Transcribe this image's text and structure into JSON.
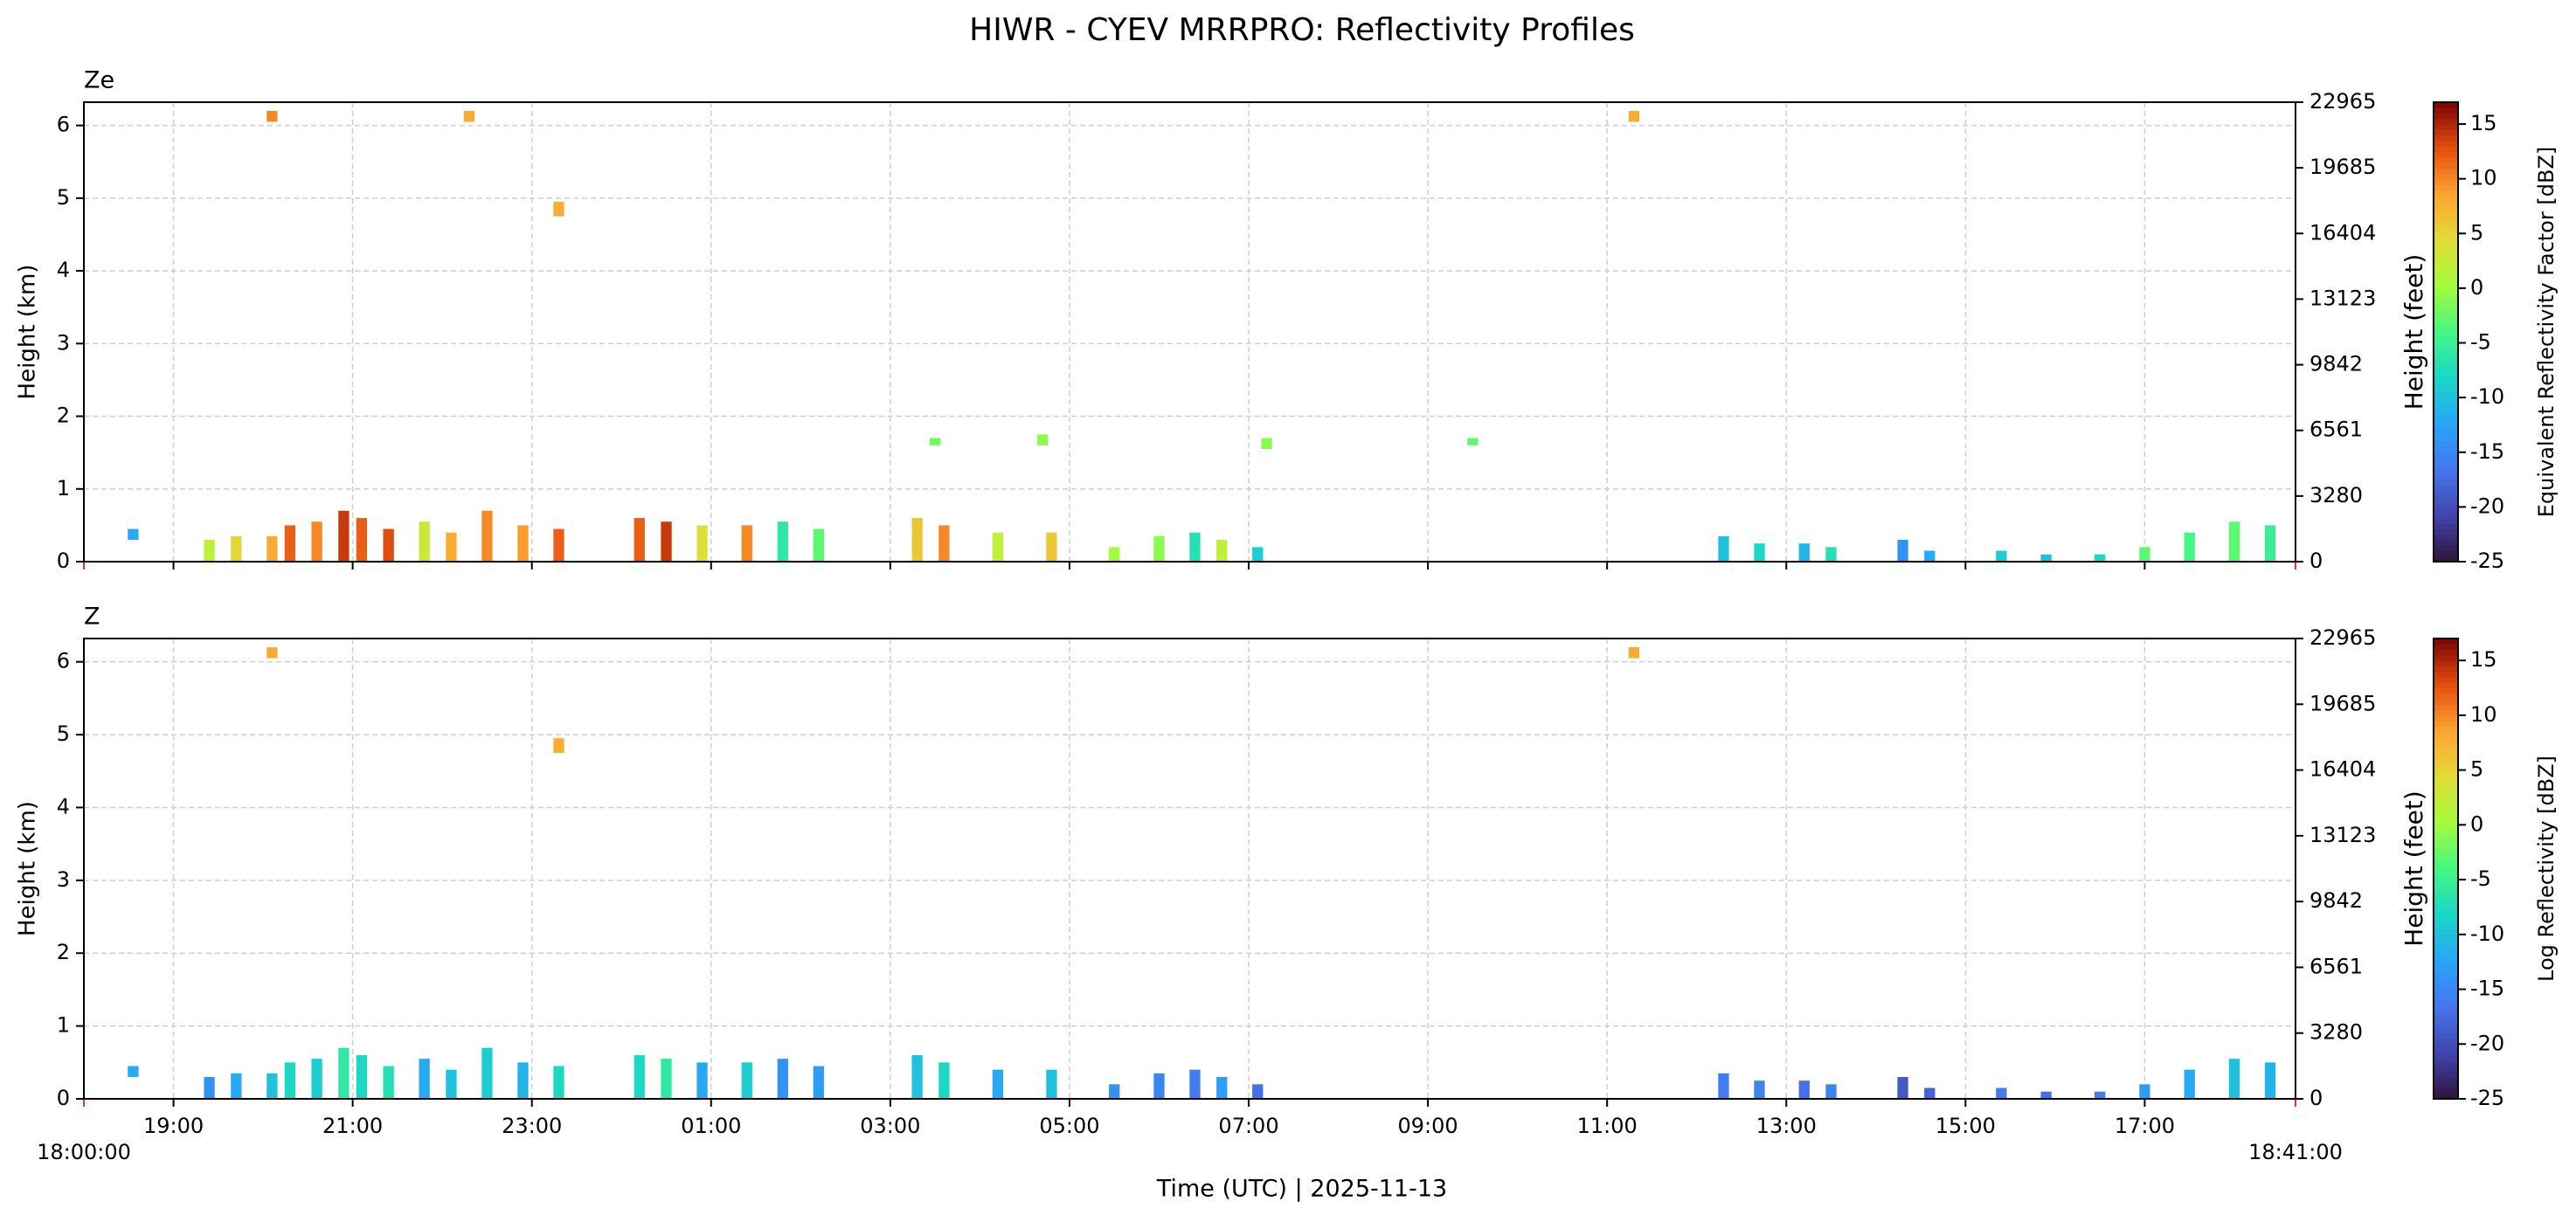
{
  "title": "HIWR - CYEV MRRPRO: Reflectivity Profiles",
  "xlabel": "Time (UTC)  |  2025-11-13",
  "xlim": [
    0,
    24.683
  ],
  "xticks": [
    {
      "value": 0,
      "label": "18:00:00"
    },
    {
      "value": 1,
      "label": "19:00"
    },
    {
      "value": 3,
      "label": "21:00"
    },
    {
      "value": 5,
      "label": "23:00"
    },
    {
      "value": 7,
      "label": "01:00"
    },
    {
      "value": 9,
      "label": "03:00"
    },
    {
      "value": 11,
      "label": "05:00"
    },
    {
      "value": 13,
      "label": "07:00"
    },
    {
      "value": 15,
      "label": "09:00"
    },
    {
      "value": 17,
      "label": "11:00"
    },
    {
      "value": 19,
      "label": "13:00"
    },
    {
      "value": 21,
      "label": "15:00"
    },
    {
      "value": 23,
      "label": "17:00"
    },
    {
      "value": 24.683,
      "label": "18:41:00"
    }
  ],
  "chart_data": [
    {
      "type": "heatmap",
      "panel_label": "Ze",
      "ylabel": "Height (km)",
      "y2label": "Height (feet)",
      "colorbar_label": "Equivalent Reflectivity Factor [dBZ]",
      "ylim": [
        0,
        6.32
      ],
      "yticks": [
        0,
        1,
        2,
        3,
        4,
        5,
        6
      ],
      "y2lim": [
        0,
        22965
      ],
      "y2ticks": [
        0,
        3280,
        6561,
        9842,
        13123,
        16404,
        19685,
        22965
      ],
      "clim": [
        -25,
        17
      ],
      "cticks": [
        -25,
        -20,
        -15,
        -10,
        -5,
        0,
        5,
        10,
        15
      ],
      "colormap": "turbo",
      "grid": true,
      "x": [
        0.55,
        1.4,
        1.7,
        2.1,
        2.3,
        2.6,
        2.9,
        3.1,
        3.4,
        3.8,
        4.1,
        4.5,
        4.9,
        5.3,
        6.2,
        6.5,
        6.9,
        7.4,
        7.8,
        8.2,
        9.3,
        9.6,
        10.2,
        10.8,
        11.5,
        12.0,
        12.4,
        12.7,
        13.1,
        18.3,
        18.7,
        19.2,
        19.5,
        20.3,
        20.6,
        21.4,
        21.9,
        22.5,
        23.0,
        23.5,
        24.0,
        24.4,
        2.1,
        4.3,
        5.3,
        9.5,
        10.7,
        13.2,
        15.5,
        17.3
      ],
      "y0": [
        0.3,
        0,
        0,
        0,
        0,
        0,
        0,
        0,
        0,
        0,
        0,
        0,
        0,
        0,
        0,
        0,
        0,
        0,
        0,
        0,
        0,
        0,
        0,
        0,
        0,
        0,
        0,
        0,
        0,
        0,
        0,
        0,
        0,
        0,
        0,
        0,
        0,
        0,
        0,
        0,
        0,
        0,
        6.05,
        6.05,
        4.75,
        1.6,
        1.6,
        1.55,
        1.6,
        6.05
      ],
      "y1": [
        0.45,
        0.3,
        0.35,
        0.35,
        0.5,
        0.55,
        0.7,
        0.6,
        0.45,
        0.55,
        0.4,
        0.7,
        0.5,
        0.45,
        0.6,
        0.55,
        0.5,
        0.5,
        0.55,
        0.45,
        0.6,
        0.5,
        0.4,
        0.4,
        0.2,
        0.35,
        0.4,
        0.3,
        0.2,
        0.35,
        0.25,
        0.25,
        0.2,
        0.3,
        0.15,
        0.15,
        0.1,
        0.1,
        0.2,
        0.4,
        0.55,
        0.5,
        6.2,
        6.2,
        4.95,
        1.7,
        1.75,
        1.7,
        1.7,
        6.2
      ],
      "values": [
        -12,
        2,
        5,
        8,
        12,
        10,
        14,
        12,
        13,
        3,
        8,
        10,
        9,
        12,
        12,
        14,
        4,
        10,
        -6,
        -3,
        6,
        10,
        2,
        6,
        0,
        -1,
        -7,
        2,
        -9,
        -10,
        -8,
        -11,
        -7,
        -14,
        -12,
        -9,
        -10,
        -8,
        -3,
        -4,
        -3,
        -5,
        10,
        8,
        8,
        -2,
        -1,
        -1,
        -3,
        8
      ]
    },
    {
      "type": "heatmap",
      "panel_label": "Z",
      "ylabel": "Height (km)",
      "y2label": "Height (feet)",
      "colorbar_label": "Log Reflectivity [dBZ]",
      "ylim": [
        0,
        6.32
      ],
      "yticks": [
        0,
        1,
        2,
        3,
        4,
        5,
        6
      ],
      "y2lim": [
        0,
        22965
      ],
      "y2ticks": [
        0,
        3280,
        6561,
        9842,
        13123,
        16404,
        19685,
        22965
      ],
      "clim": [
        -25,
        17
      ],
      "cticks": [
        -25,
        -20,
        -15,
        -10,
        -5,
        0,
        5,
        10,
        15
      ],
      "colormap": "turbo",
      "grid": true,
      "x": [
        0.55,
        1.4,
        1.7,
        2.1,
        2.3,
        2.6,
        2.9,
        3.1,
        3.4,
        3.8,
        4.1,
        4.5,
        4.9,
        5.3,
        6.2,
        6.5,
        6.9,
        7.4,
        7.8,
        8.2,
        9.3,
        9.6,
        10.2,
        10.8,
        11.5,
        12.0,
        12.4,
        12.7,
        13.1,
        18.3,
        18.7,
        19.2,
        19.5,
        20.3,
        20.6,
        21.4,
        21.9,
        22.5,
        23.0,
        23.5,
        24.0,
        24.4,
        2.1,
        5.3,
        17.3
      ],
      "y0": [
        0.3,
        0,
        0,
        0,
        0,
        0,
        0,
        0,
        0,
        0,
        0,
        0,
        0,
        0,
        0,
        0,
        0,
        0,
        0,
        0,
        0,
        0,
        0,
        0,
        0,
        0,
        0,
        0,
        0,
        0,
        0,
        0,
        0,
        0,
        0,
        0,
        0,
        0,
        0,
        0,
        0,
        0,
        6.05,
        4.75,
        6.05
      ],
      "y1": [
        0.45,
        0.3,
        0.35,
        0.35,
        0.5,
        0.55,
        0.7,
        0.6,
        0.45,
        0.55,
        0.4,
        0.7,
        0.5,
        0.45,
        0.6,
        0.55,
        0.5,
        0.5,
        0.55,
        0.45,
        0.6,
        0.5,
        0.4,
        0.4,
        0.2,
        0.35,
        0.4,
        0.3,
        0.2,
        0.35,
        0.25,
        0.25,
        0.2,
        0.3,
        0.15,
        0.15,
        0.1,
        0.1,
        0.2,
        0.4,
        0.55,
        0.5,
        6.2,
        4.95,
        6.2
      ],
      "values": [
        -12,
        -14,
        -12,
        -10,
        -8,
        -9,
        -6,
        -8,
        -7,
        -12,
        -10,
        -9,
        -11,
        -8,
        -8,
        -6,
        -12,
        -9,
        -14,
        -13,
        -10,
        -8,
        -12,
        -10,
        -14,
        -15,
        -16,
        -13,
        -17,
        -16,
        -15,
        -17,
        -15,
        -19,
        -18,
        -16,
        -17,
        -16,
        -13,
        -12,
        -10,
        -11,
        8,
        8,
        8
      ]
    }
  ]
}
